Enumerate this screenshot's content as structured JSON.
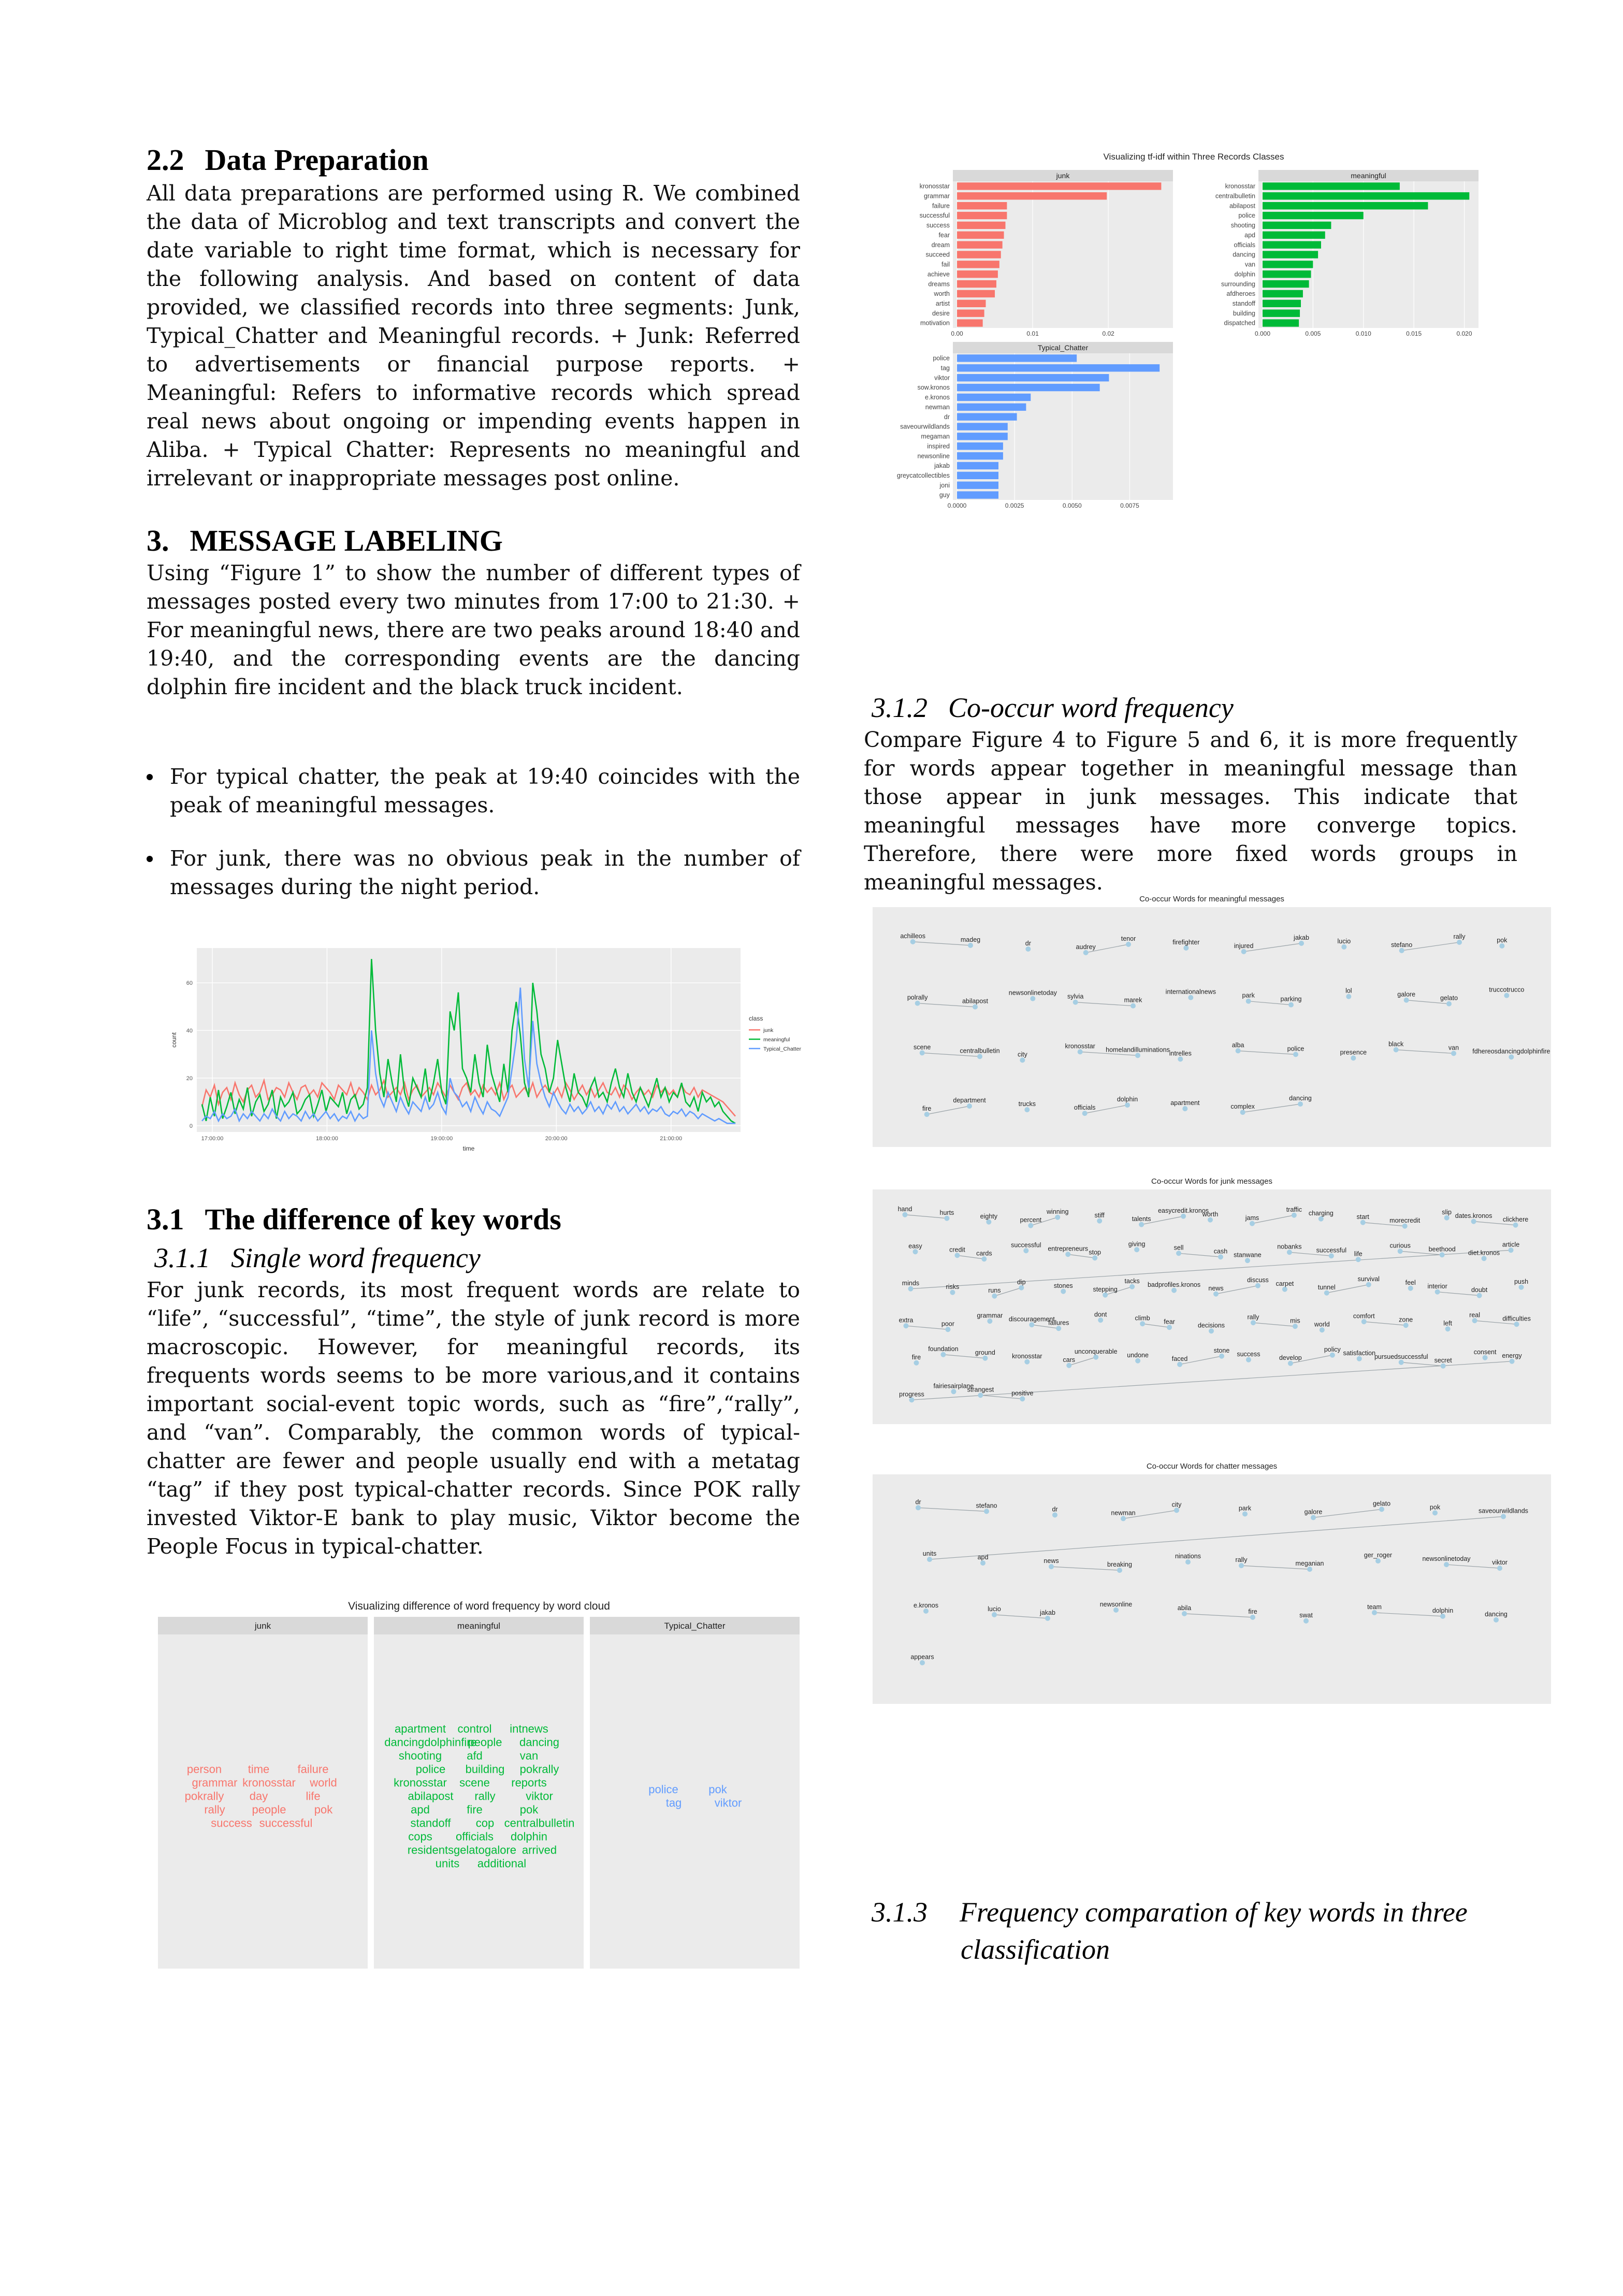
{
  "left": {
    "sec22": {
      "num": "2.2",
      "title": "Data Preparation",
      "body": "All data preparations are performed using R. We combined the data of Microblog and text transcripts and convert the date variable to right time format, which is necessary for the following analysis. And based on content of data provided, we classified records into three segments: Junk, Typical_Chatter and Meaningful records. + Junk: Referred to advertisements or financial purpose reports. + Meaningful: Refers to informative records which spread real news about ongoing or impending events happen in Aliba. + Typical Chatter: Represents no meaningful and irrelevant or inappropriate messages post online."
    },
    "sec3": {
      "num": "3.",
      "title": "MESSAGE LABELING",
      "body": "Using “Figure 1” to show the number of different types of messages posted every two minutes from 17:00 to 21:30. + For meaningful news, there are two peaks around 18:40 and 19:40, and the corresponding events are the dancing dolphin fire incident and the black truck incident.",
      "bullets": [
        "For typical chatter, the peak at 19:40 coincides with the peak of meaningful messages.",
        "For junk, there was no obvious peak in the number of messages during the night period."
      ]
    },
    "sec31": {
      "num": "3.1",
      "title": "The difference of key words",
      "sub_num": "3.1.1",
      "sub_title": "Single word frequency",
      "body": "For junk records, its most frequent words are relate to “life”, “successful”, “time”, the style of junk record is more macroscopic. However, for meaningful records, its frequents words seems to be more various,and it contains important social-event topic words, such as “fire”,“rally”, and “van”. Comparably, the common words of typical-chatter are fewer and people usually end with a metatag “tag” if they post typical-chatter records. Since POK rally invested Viktor-E bank to play music, Viktor become the People Focus in typical-chatter."
    }
  },
  "right": {
    "sec312": {
      "num": "3.1.2",
      "title": "Co-occur word frequency",
      "body": "Compare Figure 4 to Figure 5 and 6, it is more frequently for words appear together in meaningful message than those appear in junk messages. This indicate that meaningful messages have more converge topics. Therefore, there were more fixed words groups in meaningful messages."
    },
    "sec313": {
      "num": "3.1.3",
      "title_line1": "Frequency comparation of key words in three",
      "title_line2": "classification"
    }
  },
  "colors": {
    "junk": "#f8766d",
    "meaningful": "#00ba38",
    "chatter": "#619cff",
    "panel": "#ebebeb",
    "strip": "#d9d9d9",
    "node": "#a6cee3"
  },
  "chart_data": [
    {
      "type": "bar",
      "id": "tfidf",
      "title": "Visualizing tf-idf within Three Records Classes",
      "panels": [
        {
          "name": "junk",
          "color": "#f8766d",
          "xlim": [
            0,
            0.028
          ],
          "ticks": [
            "0.00",
            "0.01",
            "0.02"
          ],
          "tick_values": [
            0,
            0.01,
            0.02
          ],
          "categories": [
            "kronosstar",
            "grammar",
            "failure",
            "successful",
            "success",
            "fear",
            "dream",
            "succeed",
            "fail",
            "achieve",
            "dreams",
            "worth",
            "artist",
            "desire",
            "motivation"
          ],
          "values": [
            0.027,
            0.0198,
            0.0066,
            0.0066,
            0.0064,
            0.0062,
            0.006,
            0.0058,
            0.0056,
            0.0054,
            0.0052,
            0.005,
            0.0038,
            0.0036,
            0.0034
          ]
        },
        {
          "name": "meaningful",
          "color": "#00ba38",
          "xlim": [
            0,
            0.021
          ],
          "ticks": [
            "0.000",
            "0.005",
            "0.010",
            "0.015",
            "0.020"
          ],
          "tick_values": [
            0,
            0.005,
            0.01,
            0.015,
            0.02
          ],
          "categories": [
            "kronosstar",
            "centralbulletin",
            "abilapost",
            "police",
            "shooting",
            "apd",
            "officials",
            "dancing",
            "van",
            "dolphin",
            "surrounding",
            "afdheroes",
            "standoff",
            "building",
            "dispatched"
          ],
          "values": [
            0.0136,
            0.0205,
            0.0164,
            0.01,
            0.0068,
            0.0062,
            0.0058,
            0.0055,
            0.005,
            0.0048,
            0.0046,
            0.004,
            0.0038,
            0.0037,
            0.0036
          ]
        },
        {
          "name": "Typical_Chatter",
          "color": "#619cff",
          "xlim": [
            0,
            0.0092
          ],
          "ticks": [
            "0.0000",
            "0.0025",
            "0.0050",
            "0.0075"
          ],
          "tick_values": [
            0,
            0.0025,
            0.005,
            0.0075
          ],
          "categories": [
            "police",
            "tag",
            "viktor",
            "sow.kronos",
            "e.kronos",
            "newman",
            "dr",
            "saveourwildlands",
            "megaman",
            "inspired",
            "newsonline",
            "jakab",
            "greycatcollectibles",
            "joni",
            "guy"
          ],
          "values": [
            0.0052,
            0.0088,
            0.0066,
            0.0062,
            0.0032,
            0.003,
            0.0026,
            0.0022,
            0.0022,
            0.002,
            0.002,
            0.0018,
            0.0018,
            0.0018,
            0.0018
          ]
        }
      ]
    },
    {
      "type": "line",
      "id": "counts",
      "xlabel": "time",
      "ylabel": "count",
      "x_ticks": [
        "17:00:00",
        "18:00:00",
        "19:00:00",
        "20:00:00",
        "21:00:00"
      ],
      "y_ticks": [
        0,
        20,
        40,
        60
      ],
      "ylim": [
        0,
        72
      ],
      "legend_title": "class",
      "series": [
        {
          "name": "junk",
          "color": "#f8766d",
          "values": [
            8,
            15,
            12,
            17,
            9,
            14,
            16,
            11,
            18,
            13,
            10,
            15,
            17,
            12,
            14,
            19,
            11,
            13,
            16,
            15,
            12,
            18,
            14,
            11,
            16,
            17,
            13,
            15,
            12,
            18,
            16,
            14,
            11,
            17,
            15,
            13,
            18,
            12,
            16,
            14,
            11,
            17,
            13,
            15,
            19,
            12,
            14,
            16,
            13,
            18,
            11,
            15,
            17,
            12,
            14,
            16,
            13,
            18,
            15,
            12,
            17,
            14,
            11,
            16,
            18,
            13,
            15,
            12,
            17,
            14,
            16,
            13,
            18,
            11,
            15,
            17,
            12,
            14,
            16,
            13,
            18,
            12,
            15,
            17,
            14,
            13,
            16,
            12,
            18,
            15,
            11,
            14,
            17,
            13,
            16,
            12,
            15,
            18,
            14,
            13,
            16,
            12,
            17,
            15,
            11,
            14,
            16,
            13,
            15,
            12,
            17,
            14,
            16,
            13,
            15,
            12,
            17,
            14,
            13,
            16,
            12,
            15,
            14,
            13,
            12,
            11,
            10,
            8,
            6,
            4
          ]
        },
        {
          "name": "meaningful",
          "color": "#00ba38",
          "values": [
            9,
            2,
            12,
            4,
            15,
            3,
            8,
            14,
            5,
            11,
            7,
            16,
            4,
            10,
            13,
            6,
            9,
            15,
            3,
            12,
            8,
            10,
            14,
            5,
            7,
            11,
            13,
            4,
            9,
            15,
            6,
            12,
            10,
            8,
            14,
            5,
            11,
            13,
            7,
            9,
            16,
            70,
            40,
            22,
            12,
            28,
            18,
            10,
            30,
            14,
            8,
            20,
            16,
            12,
            24,
            10,
            18,
            28,
            14,
            9,
            48,
            40,
            56,
            24,
            20,
            14,
            30,
            18,
            12,
            34,
            22,
            16,
            10,
            26,
            14,
            40,
            52,
            38,
            18,
            12,
            60,
            48,
            30,
            24,
            14,
            20,
            36,
            26,
            16,
            10,
            22,
            14,
            12,
            8,
            16,
            20,
            12,
            14,
            10,
            18,
            24,
            16,
            12,
            22,
            14,
            10,
            16,
            12,
            8,
            14,
            20,
            12,
            16,
            10,
            14,
            12,
            18,
            10,
            8,
            12,
            6,
            14,
            10,
            12,
            8,
            10,
            6,
            4,
            2,
            1
          ]
        },
        {
          "name": "Typical_Chatter",
          "color": "#619cff",
          "values": [
            2,
            4,
            3,
            6,
            2,
            5,
            3,
            4,
            7,
            2,
            5,
            3,
            6,
            4,
            2,
            5,
            3,
            7,
            4,
            2,
            6,
            3,
            5,
            4,
            2,
            6,
            3,
            5,
            2,
            4,
            6,
            3,
            5,
            2,
            4,
            3,
            6,
            2,
            5,
            3,
            4,
            40,
            22,
            12,
            8,
            14,
            10,
            6,
            12,
            8,
            5,
            10,
            8,
            6,
            12,
            7,
            9,
            14,
            8,
            5,
            20,
            14,
            12,
            8,
            10,
            6,
            12,
            8,
            5,
            10,
            7,
            6,
            4,
            8,
            12,
            24,
            36,
            58,
            28,
            16,
            44,
            26,
            18,
            12,
            8,
            14,
            10,
            7,
            5,
            9,
            6,
            8,
            5,
            7,
            10,
            6,
            8,
            5,
            9,
            7,
            10,
            6,
            8,
            5,
            7,
            9,
            6,
            8,
            5,
            7,
            6,
            8,
            5,
            4,
            6,
            5,
            7,
            4,
            6,
            5,
            3,
            5,
            4,
            3,
            2,
            3,
            2,
            1,
            1,
            1
          ]
        }
      ]
    },
    {
      "type": "other",
      "id": "wordcloud",
      "title": "Visualizing difference of word frequency by word cloud",
      "panels": [
        {
          "name": "junk",
          "color": "#f8766d",
          "words": [
            "person",
            "time",
            "failure",
            "grammar",
            "kronosstar",
            "world",
            "pokrally",
            "day",
            "life",
            "rally",
            "people",
            "pok",
            "success",
            "successful"
          ]
        },
        {
          "name": "meaningful",
          "color": "#00ba38",
          "words": [
            "apartment",
            "control",
            "intnews",
            "dancingdolphinfire",
            "people",
            "dancing",
            "shooting",
            "afd",
            "van",
            "police",
            "building",
            "pokrally",
            "kronosstar",
            "scene",
            "reports",
            "abilapost",
            "rally",
            "viktor",
            "apd",
            "fire",
            "pok",
            "standoff",
            "cop",
            "centralbulletin",
            "cops",
            "officials",
            "dolphin",
            "residents",
            "gelatogalore",
            "arrived",
            "units",
            "additional"
          ]
        },
        {
          "name": "Typical_Chatter",
          "color": "#619cff",
          "words": [
            "police",
            "pok",
            "tag",
            "viktor"
          ]
        }
      ]
    },
    {
      "type": "other",
      "id": "net_meaningful",
      "title": "Co-occur Words for meaningful messages",
      "nodes": [
        "achilleos",
        "madeg",
        "dr",
        "audrey",
        "tenor",
        "firefighter",
        "injured",
        "jakab",
        "lucio",
        "stefano",
        "rally",
        "pok",
        "polrally",
        "abilapost",
        "newsonlinetoday",
        "sylvia",
        "marek",
        "internationalnews",
        "park",
        "parking",
        "lol",
        "galore",
        "gelato",
        "truccotrucco",
        "scene",
        "centralbulletin",
        "city",
        "kronosstar",
        "homelandilluminations",
        "intrelles",
        "alba",
        "police",
        "presence",
        "black",
        "van",
        "fdhereosdancingdolphinfire",
        "fire",
        "department",
        "trucks",
        "officials",
        "dolphin",
        "apartment",
        "complex",
        "dancing"
      ]
    },
    {
      "type": "other",
      "id": "net_junk",
      "title": "Co-occur Words for junk messages",
      "nodes": [
        "hand",
        "hurts",
        "eighty",
        "percent",
        "winning",
        "stiff",
        "talents",
        "easycredit.kronos",
        "worth",
        "jams",
        "traffic",
        "charging",
        "start",
        "morecredit",
        "slip",
        "dates.kronos",
        "clickhere",
        "easy",
        "credit",
        "cards",
        "successful",
        "entrepreneurs",
        "stop",
        "giving",
        "sell",
        "cash",
        "stanwane",
        "nobanks",
        "successful",
        "life",
        "curious",
        "beethood",
        "diet.kronos",
        "article",
        "minds",
        "risks",
        "runs",
        "dip",
        "stones",
        "stepping",
        "tacks",
        "badprofiles.kronos",
        "news",
        "discuss",
        "carpet",
        "tunnel",
        "survival",
        "feel",
        "interior",
        "doubt",
        "push",
        "extra",
        "poor",
        "grammar",
        "discouragement",
        "failures",
        "dont",
        "climb",
        "fear",
        "decisions",
        "rally",
        "mis",
        "world",
        "comfort",
        "zone",
        "left",
        "real",
        "difficulties",
        "fire",
        "foundation",
        "ground",
        "kronosstar",
        "cars",
        "unconquerable",
        "undone",
        "faced",
        "stone",
        "success",
        "develop",
        "policy",
        "satisfaction",
        "pursuedsuccessful",
        "secret",
        "consent",
        "energy",
        "progress",
        "fairiesairplane",
        "strangest",
        "positive"
      ]
    },
    {
      "type": "other",
      "id": "net_chatter",
      "title": "Co-occur Words for chatter messages",
      "nodes": [
        "dr",
        "stefano",
        "dr",
        "newman",
        "city",
        "park",
        "galore",
        "gelato",
        "pok",
        "saveourwildlands",
        "units",
        "apd",
        "news",
        "breaking",
        "ninations",
        "rally",
        "meganian",
        "ger_roger",
        "newsonlinetoday",
        "viktor",
        "e.kronos",
        "lucio",
        "jakab",
        "newsonline",
        "abila",
        "fire",
        "swat",
        "team",
        "dolphin",
        "dancing",
        "appears"
      ]
    }
  ]
}
